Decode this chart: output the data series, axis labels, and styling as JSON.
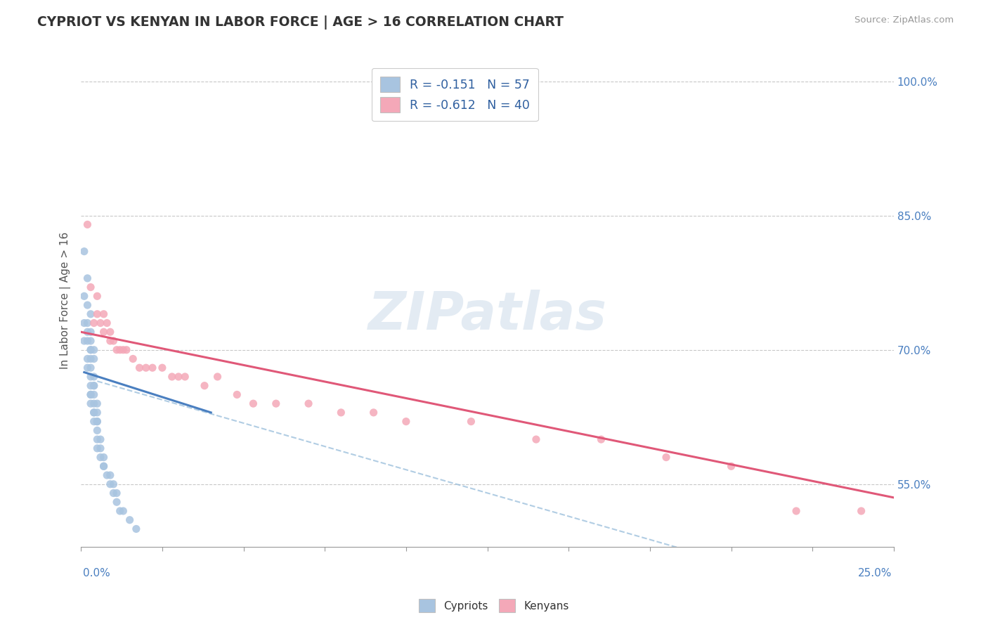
{
  "title": "CYPRIOT VS KENYAN IN LABOR FORCE | AGE > 16 CORRELATION CHART",
  "source": "Source: ZipAtlas.com",
  "ylabel": "In Labor Force | Age > 16",
  "cypriot_R": -0.151,
  "cypriot_N": 57,
  "kenyan_R": -0.612,
  "kenyan_N": 40,
  "cypriot_color": "#a8c4e0",
  "kenyan_color": "#f4a8b8",
  "cypriot_line_color": "#4a7fc0",
  "kenyan_line_color": "#e05878",
  "dashed_line_color": "#90b8d8",
  "xlim": [
    0.0,
    0.25
  ],
  "ylim": [
    0.48,
    1.03
  ],
  "yticks": [
    0.55,
    0.7,
    0.85,
    1.0
  ],
  "ytick_labels": [
    "55.0%",
    "70.0%",
    "85.0%",
    "100.0%"
  ],
  "cypriot_points_x": [
    0.001,
    0.002,
    0.001,
    0.002,
    0.003,
    0.001,
    0.002,
    0.002,
    0.003,
    0.003,
    0.001,
    0.002,
    0.003,
    0.003,
    0.004,
    0.002,
    0.003,
    0.004,
    0.002,
    0.003,
    0.003,
    0.004,
    0.003,
    0.004,
    0.004,
    0.003,
    0.004,
    0.003,
    0.004,
    0.005,
    0.003,
    0.004,
    0.004,
    0.005,
    0.004,
    0.005,
    0.005,
    0.005,
    0.005,
    0.006,
    0.005,
    0.006,
    0.006,
    0.007,
    0.007,
    0.007,
    0.008,
    0.009,
    0.009,
    0.01,
    0.01,
    0.011,
    0.011,
    0.012,
    0.013,
    0.015,
    0.017
  ],
  "cypriot_points_y": [
    0.81,
    0.78,
    0.76,
    0.75,
    0.74,
    0.73,
    0.73,
    0.72,
    0.72,
    0.71,
    0.71,
    0.71,
    0.7,
    0.7,
    0.7,
    0.69,
    0.69,
    0.69,
    0.68,
    0.68,
    0.67,
    0.67,
    0.66,
    0.66,
    0.66,
    0.65,
    0.65,
    0.65,
    0.64,
    0.64,
    0.64,
    0.63,
    0.63,
    0.63,
    0.62,
    0.62,
    0.62,
    0.61,
    0.6,
    0.6,
    0.59,
    0.59,
    0.58,
    0.58,
    0.57,
    0.57,
    0.56,
    0.56,
    0.55,
    0.55,
    0.54,
    0.54,
    0.53,
    0.52,
    0.52,
    0.51,
    0.5
  ],
  "kenyan_points_x": [
    0.002,
    0.003,
    0.004,
    0.005,
    0.005,
    0.006,
    0.007,
    0.007,
    0.008,
    0.009,
    0.009,
    0.01,
    0.011,
    0.012,
    0.013,
    0.014,
    0.016,
    0.018,
    0.02,
    0.022,
    0.025,
    0.028,
    0.03,
    0.032,
    0.038,
    0.042,
    0.048,
    0.053,
    0.06,
    0.07,
    0.08,
    0.09,
    0.1,
    0.12,
    0.14,
    0.16,
    0.18,
    0.2,
    0.22,
    0.24
  ],
  "kenyan_points_y": [
    0.84,
    0.77,
    0.73,
    0.76,
    0.74,
    0.73,
    0.74,
    0.72,
    0.73,
    0.72,
    0.71,
    0.71,
    0.7,
    0.7,
    0.7,
    0.7,
    0.69,
    0.68,
    0.68,
    0.68,
    0.68,
    0.67,
    0.67,
    0.67,
    0.66,
    0.67,
    0.65,
    0.64,
    0.64,
    0.64,
    0.63,
    0.63,
    0.62,
    0.62,
    0.6,
    0.6,
    0.58,
    0.57,
    0.52,
    0.52
  ],
  "cypriot_line_x": [
    0.001,
    0.04
  ],
  "cypriot_line_y": [
    0.675,
    0.63
  ],
  "kenyan_line_x": [
    0.0,
    0.25
  ],
  "kenyan_line_y": [
    0.72,
    0.535
  ],
  "dashed_line_x": [
    0.005,
    0.25
  ],
  "dashed_line_y": [
    0.665,
    0.41
  ]
}
